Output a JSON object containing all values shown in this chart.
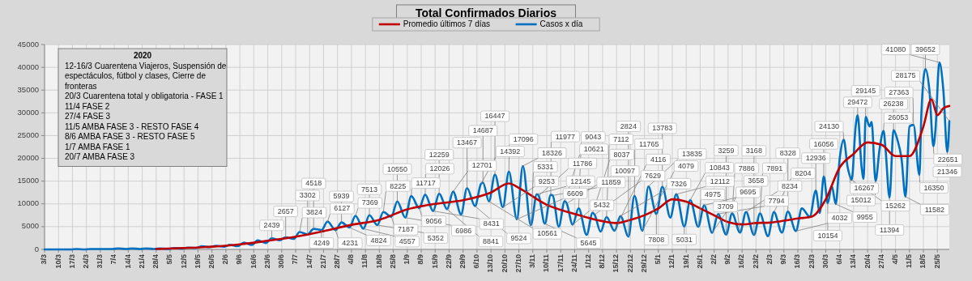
{
  "chart_data": {
    "type": "line",
    "title": "Total Confirmados Diarios",
    "legend": "top",
    "grid": true,
    "xlim": [
      "2020-03-03",
      "2021-05-31"
    ],
    "ylim": [
      0,
      45000
    ],
    "yticks": [
      0,
      5000,
      10000,
      15000,
      20000,
      25000,
      30000,
      35000,
      40000,
      45000
    ],
    "xticks": [
      {
        "value": "2020-03-03",
        "label": "3/3"
      },
      {
        "value": "2020-03-10",
        "label": "10/3"
      },
      {
        "value": "2020-03-17",
        "label": "17/3"
      },
      {
        "value": "2020-03-24",
        "label": "24/3"
      },
      {
        "value": "2020-03-31",
        "label": "31/3"
      },
      {
        "value": "2020-04-07",
        "label": "7/4"
      },
      {
        "value": "2020-04-14",
        "label": "14/4"
      },
      {
        "value": "2020-04-21",
        "label": "21/4"
      },
      {
        "value": "2020-04-28",
        "label": "28/4"
      },
      {
        "value": "2020-05-05",
        "label": "5/5"
      },
      {
        "value": "2020-05-12",
        "label": "12/5"
      },
      {
        "value": "2020-05-19",
        "label": "19/5"
      },
      {
        "value": "2020-05-26",
        "label": "26/5"
      },
      {
        "value": "2020-06-02",
        "label": "2/6"
      },
      {
        "value": "2020-06-09",
        "label": "9/6"
      },
      {
        "value": "2020-06-16",
        "label": "16/6"
      },
      {
        "value": "2020-06-23",
        "label": "23/6"
      },
      {
        "value": "2020-06-30",
        "label": "30/6"
      },
      {
        "value": "2020-07-07",
        "label": "7/7"
      },
      {
        "value": "2020-07-14",
        "label": "14/7"
      },
      {
        "value": "2020-07-21",
        "label": "21/7"
      },
      {
        "value": "2020-07-28",
        "label": "28/7"
      },
      {
        "value": "2020-08-04",
        "label": "4/8"
      },
      {
        "value": "2020-08-11",
        "label": "11/8"
      },
      {
        "value": "2020-08-18",
        "label": "18/8"
      },
      {
        "value": "2020-08-25",
        "label": "25/8"
      },
      {
        "value": "2020-09-01",
        "label": "1/9"
      },
      {
        "value": "2020-09-08",
        "label": "8/9"
      },
      {
        "value": "2020-09-15",
        "label": "15/9"
      },
      {
        "value": "2020-09-22",
        "label": "22/9"
      },
      {
        "value": "2020-09-29",
        "label": "29/9"
      },
      {
        "value": "2020-10-06",
        "label": "6/10"
      },
      {
        "value": "2020-10-13",
        "label": "13/10"
      },
      {
        "value": "2020-10-20",
        "label": "20/10"
      },
      {
        "value": "2020-10-27",
        "label": "27/10"
      },
      {
        "value": "2020-11-03",
        "label": "3/11"
      },
      {
        "value": "2020-11-10",
        "label": "10/11"
      },
      {
        "value": "2020-11-17",
        "label": "17/11"
      },
      {
        "value": "2020-11-24",
        "label": "24/11"
      },
      {
        "value": "2020-12-01",
        "label": "1/12"
      },
      {
        "value": "2020-12-08",
        "label": "8/12"
      },
      {
        "value": "2020-12-15",
        "label": "15/12"
      },
      {
        "value": "2020-12-22",
        "label": "22/12"
      },
      {
        "value": "2020-12-29",
        "label": "29/12"
      },
      {
        "value": "2021-01-05",
        "label": "5/1"
      },
      {
        "value": "2021-01-12",
        "label": "12/1"
      },
      {
        "value": "2021-01-19",
        "label": "19/1"
      },
      {
        "value": "2021-01-26",
        "label": "26/1"
      },
      {
        "value": "2021-02-02",
        "label": "2/2"
      },
      {
        "value": "2021-02-09",
        "label": "9/2"
      },
      {
        "value": "2021-02-16",
        "label": "16/2"
      },
      {
        "value": "2021-02-23",
        "label": "23/2"
      },
      {
        "value": "2021-03-02",
        "label": "2/3"
      },
      {
        "value": "2021-03-09",
        "label": "9/3"
      },
      {
        "value": "2021-03-16",
        "label": "16/3"
      },
      {
        "value": "2021-03-23",
        "label": "23/3"
      },
      {
        "value": "2021-03-30",
        "label": "30/3"
      },
      {
        "value": "2021-04-06",
        "label": "6/4"
      },
      {
        "value": "2021-04-13",
        "label": "13/4"
      },
      {
        "value": "2021-04-20",
        "label": "20/4"
      },
      {
        "value": "2021-04-27",
        "label": "27/4"
      },
      {
        "value": "2021-05-04",
        "label": "4/5"
      },
      {
        "value": "2021-05-11",
        "label": "11/5"
      },
      {
        "value": "2021-05-18",
        "label": "18/5"
      },
      {
        "value": "2021-05-25",
        "label": "25/5"
      }
    ],
    "series": [
      {
        "name": "Promedio últimos 7 días",
        "color": "#c00000",
        "x": [
          "2020-04-28",
          "2020-05-12",
          "2020-05-26",
          "2020-06-09",
          "2020-06-23",
          "2020-07-07",
          "2020-07-21",
          "2020-08-04",
          "2020-08-18",
          "2020-09-01",
          "2020-09-15",
          "2020-09-29",
          "2020-10-13",
          "2020-10-22",
          "2020-10-27",
          "2020-11-10",
          "2020-11-24",
          "2020-12-08",
          "2020-12-15",
          "2020-12-22",
          "2020-12-29",
          "2021-01-05",
          "2021-01-12",
          "2021-01-19",
          "2021-01-26",
          "2021-02-02",
          "2021-02-09",
          "2021-02-16",
          "2021-02-23",
          "2021-03-02",
          "2021-03-09",
          "2021-03-16",
          "2021-03-23",
          "2021-03-30",
          "2021-04-06",
          "2021-04-13",
          "2021-04-20",
          "2021-04-27",
          "2021-05-04",
          "2021-05-11",
          "2021-05-18",
          "2021-05-22",
          "2021-05-25",
          "2021-05-28",
          "2021-05-31"
        ],
        "values": [
          100,
          300,
          600,
          1100,
          1900,
          2800,
          4000,
          5400,
          6500,
          8800,
          10000,
          10800,
          12500,
          14500,
          13500,
          9800,
          7800,
          6200,
          5800,
          6500,
          7500,
          9000,
          11000,
          10500,
          9000,
          7500,
          6000,
          5500,
          5800,
          5900,
          6300,
          6800,
          7200,
          11000,
          18000,
          21000,
          23500,
          23000,
          20500,
          20500,
          27000,
          33000,
          29500,
          31000,
          31500
        ]
      },
      {
        "name": "Casos x día",
        "color": "#0070c0",
        "x": [
          "2020-03-03",
          "2020-03-05",
          "2020-03-09",
          "2020-03-12",
          "2020-03-16",
          "2020-03-19",
          "2020-03-23",
          "2020-03-26",
          "2020-03-30",
          "2020-04-02",
          "2020-04-06",
          "2020-04-09",
          "2020-04-13",
          "2020-04-16",
          "2020-04-20",
          "2020-04-23",
          "2020-04-27",
          "2020-04-30",
          "2020-05-04",
          "2020-05-07",
          "2020-05-11",
          "2020-05-14",
          "2020-05-18",
          "2020-05-21",
          "2020-05-25",
          "2020-05-28",
          "2020-06-01",
          "2020-06-04",
          "2020-06-08",
          "2020-06-11",
          "2020-06-15",
          "2020-06-18",
          "2020-06-22",
          "2020-06-25",
          "2020-06-29",
          "2020-07-02",
          "2020-07-06",
          "2020-07-09",
          "2020-07-13",
          "2020-07-16",
          "2020-07-20",
          "2020-07-23",
          "2020-07-27",
          "2020-07-30",
          "2020-08-03",
          "2020-08-06",
          "2020-08-10",
          "2020-08-13",
          "2020-08-17",
          "2020-08-20",
          "2020-08-24",
          "2020-08-27",
          "2020-08-31",
          "2020-09-03",
          "2020-09-07",
          "2020-09-10",
          "2020-09-14",
          "2020-09-17",
          "2020-09-21",
          "2020-09-24",
          "2020-09-28",
          "2020-10-01",
          "2020-10-05",
          "2020-10-08",
          "2020-10-09",
          "2020-10-12",
          "2020-10-15",
          "2020-10-19",
          "2020-10-22",
          "2020-10-26",
          "2020-10-29",
          "2020-11-02",
          "2020-11-05",
          "2020-11-06",
          "2020-11-09",
          "2020-11-12",
          "2020-11-13",
          "2020-11-16",
          "2020-11-19",
          "2020-11-20",
          "2020-11-23",
          "2020-11-26",
          "2020-11-30",
          "2020-12-03",
          "2020-12-04",
          "2020-12-07",
          "2020-12-10",
          "2020-12-14",
          "2020-12-17",
          "2020-12-21",
          "2020-12-24",
          "2020-12-28",
          "2020-12-31",
          "2021-01-04",
          "2021-01-07",
          "2021-01-11",
          "2021-01-14",
          "2021-01-18",
          "2021-01-21",
          "2021-01-25",
          "2021-01-28",
          "2021-02-01",
          "2021-02-04",
          "2021-02-08",
          "2021-02-11",
          "2021-02-15",
          "2021-02-18",
          "2021-02-22",
          "2021-02-25",
          "2021-03-01",
          "2021-03-04",
          "2021-03-08",
          "2021-03-11",
          "2021-03-15",
          "2021-03-18",
          "2021-03-22",
          "2021-03-25",
          "2021-03-27",
          "2021-03-29",
          "2021-03-31",
          "2021-04-02",
          "2021-04-04",
          "2021-04-06",
          "2021-04-08",
          "2021-04-10",
          "2021-04-11",
          "2021-04-12",
          "2021-04-14",
          "2021-04-15",
          "2021-04-17",
          "2021-04-18",
          "2021-04-19",
          "2021-04-21",
          "2021-04-22",
          "2021-04-24",
          "2021-04-26",
          "2021-04-28",
          "2021-04-29",
          "2021-05-01",
          "2021-05-03",
          "2021-05-05",
          "2021-05-07",
          "2021-05-09",
          "2021-05-11",
          "2021-05-13",
          "2021-05-16",
          "2021-05-17",
          "2021-05-19",
          "2021-05-21",
          "2021-05-23",
          "2021-05-24",
          "2021-05-26",
          "2021-05-28",
          "2021-05-30",
          "2021-05-31"
        ],
        "values": [
          0,
          0,
          0,
          0,
          0,
          100,
          0,
          100,
          100,
          100,
          100,
          200,
          100,
          200,
          100,
          200,
          100,
          200,
          100,
          300,
          200,
          400,
          300,
          700,
          500,
          800,
          600,
          1000,
          700,
          1500,
          1000,
          2000,
          1400,
          2439,
          2000,
          2657,
          2300,
          3824,
          3302,
          4518,
          4249,
          6127,
          4231,
          5939,
          4824,
          7369,
          4557,
          7513,
          5352,
          8225,
          7187,
          10550,
          6986,
          11717,
          9056,
          12026,
          8431,
          12259,
          8841,
          12701,
          7700,
          13467,
          9524,
          14392,
          14687,
          10561,
          16447,
          9253,
          17096,
          6609,
          18326,
          5331,
          12145,
          11786,
          5645,
          11977,
          11859,
          5000,
          10621,
          10097,
          5432,
          9043,
          3200,
          8037,
          7629,
          3900,
          7112,
          4116,
          7326,
          2824,
          11765,
          4079,
          13835,
          7808,
          13783,
          7000,
          12112,
          5031,
          10843,
          4975,
          9695,
          3658,
          7794,
          3259,
          7886,
          3709,
          8234,
          3168,
          7891,
          2900,
          8204,
          3700,
          8328,
          4032,
          9000,
          7200,
          12936,
          8000,
          16056,
          10154,
          14000,
          9955,
          20000,
          24130,
          18000,
          16267,
          15262,
          27000,
          29472,
          18000,
          15500,
          29145,
          27000,
          28000,
          15012,
          22000,
          26053,
          22000,
          11394,
          26238,
          24000,
          20000,
          11582,
          27000,
          27363,
          16350,
          30000,
          39652,
          35000,
          22651,
          26000,
          41080,
          35000,
          21346,
          28175
        ]
      }
    ],
    "annotations": [
      "2020",
      "12-16/3 Cuarentena Viajeros, Suspensión de espectáculos, fútbol y clases, Cierre de fronteras",
      "20/3 Cuarentena total y obligatoria - FASE 1",
      "11/4 FASE 2",
      "27/4 FASE 3",
      "11/5 AMBA FASE 3 - RESTO FASE 4",
      "8/6 AMBA FASE 3 - RESTO FASE 5",
      "1/7 AMBA FASE 1",
      "20/7 AMBA FASE 3",
      {
        "text": "2439",
        "x": "2020-06-25",
        "y": 2439
      },
      {
        "text": "2657",
        "x": "2020-07-02",
        "y": 2657
      },
      {
        "text": "3824",
        "x": "2020-07-09",
        "y": 3824
      },
      {
        "text": "3302",
        "x": "2020-07-13",
        "y": 3302
      },
      {
        "text": "4518",
        "x": "2020-07-16",
        "y": 4518
      },
      {
        "text": "4249",
        "x": "2020-07-20",
        "y": 4249
      },
      {
        "text": "6127",
        "x": "2020-07-23",
        "y": 6127
      },
      {
        "text": "4231",
        "x": "2020-07-27",
        "y": 4231
      },
      {
        "text": "5939",
        "x": "2020-07-30",
        "y": 5939
      },
      {
        "text": "4824",
        "x": "2020-08-03",
        "y": 4824
      },
      {
        "text": "7369",
        "x": "2020-08-06",
        "y": 7369
      },
      {
        "text": "4557",
        "x": "2020-08-10",
        "y": 4557
      },
      {
        "text": "7513",
        "x": "2020-08-13",
        "y": 7513
      },
      {
        "text": "5352",
        "x": "2020-08-17",
        "y": 5352
      },
      {
        "text": "8225",
        "x": "2020-08-20",
        "y": 8225
      },
      {
        "text": "7187",
        "x": "2020-08-24",
        "y": 7187
      },
      {
        "text": "10550",
        "x": "2020-08-27",
        "y": 10550
      },
      {
        "text": "6986",
        "x": "2020-08-31",
        "y": 6986
      },
      {
        "text": "11717",
        "x": "2020-09-03",
        "y": 11717
      },
      {
        "text": "9056",
        "x": "2020-09-07",
        "y": 9056
      },
      {
        "text": "12026",
        "x": "2020-09-10",
        "y": 12026
      },
      {
        "text": "8431",
        "x": "2020-09-14",
        "y": 8431
      },
      {
        "text": "12259",
        "x": "2020-09-17",
        "y": 12259
      },
      {
        "text": "8841",
        "x": "2020-09-21",
        "y": 8841
      },
      {
        "text": "12701",
        "x": "2020-09-24",
        "y": 12701
      },
      {
        "text": "13467",
        "x": "2020-10-01",
        "y": 13467
      },
      {
        "text": "9524",
        "x": "2020-10-05",
        "y": 9524
      },
      {
        "text": "14392",
        "x": "2020-10-08",
        "y": 14392
      },
      {
        "text": "14687",
        "x": "2020-10-09",
        "y": 14687
      },
      {
        "text": "10561",
        "x": "2020-10-12",
        "y": 10561
      },
      {
        "text": "16447",
        "x": "2020-10-15",
        "y": 16447
      },
      {
        "text": "9253",
        "x": "2020-10-19",
        "y": 9253
      },
      {
        "text": "17096",
        "x": "2020-10-22",
        "y": 17096
      },
      {
        "text": "6609",
        "x": "2020-10-26",
        "y": 6609
      },
      {
        "text": "18326",
        "x": "2020-10-29",
        "y": 18326
      },
      {
        "text": "5331",
        "x": "2020-11-02",
        "y": 5331
      },
      {
        "text": "12145",
        "x": "2020-11-05",
        "y": 12145
      },
      {
        "text": "11786",
        "x": "2020-11-06",
        "y": 11786
      },
      {
        "text": "5645",
        "x": "2020-11-09",
        "y": 5645
      },
      {
        "text": "11977",
        "x": "2020-11-12",
        "y": 11977
      },
      {
        "text": "11859",
        "x": "2020-11-13",
        "y": 11859
      },
      {
        "text": "10621",
        "x": "2020-11-19",
        "y": 10621
      },
      {
        "text": "10097",
        "x": "2020-11-20",
        "y": 10097
      },
      {
        "text": "5432",
        "x": "2020-11-23",
        "y": 5432
      },
      {
        "text": "9043",
        "x": "2020-11-26",
        "y": 9043
      },
      {
        "text": "8037",
        "x": "2020-12-03",
        "y": 8037
      },
      {
        "text": "7629",
        "x": "2020-12-04",
        "y": 7629
      },
      {
        "text": "7112",
        "x": "2020-12-10",
        "y": 7112
      },
      {
        "text": "4116",
        "x": "2020-12-14",
        "y": 4116
      },
      {
        "text": "7326",
        "x": "2020-12-17",
        "y": 7326
      },
      {
        "text": "2824",
        "x": "2020-12-21",
        "y": 2824
      },
      {
        "text": "11765",
        "x": "2020-12-24",
        "y": 11765
      },
      {
        "text": "4079",
        "x": "2020-12-28",
        "y": 4079
      },
      {
        "text": "13835",
        "x": "2020-12-31",
        "y": 13835
      },
      {
        "text": "7808",
        "x": "2021-01-04",
        "y": 7808
      },
      {
        "text": "13783",
        "x": "2021-01-07",
        "y": 13783
      },
      {
        "text": "12112",
        "x": "2021-01-14",
        "y": 12112
      },
      {
        "text": "5031",
        "x": "2021-01-18",
        "y": 5031
      },
      {
        "text": "10843",
        "x": "2021-01-21",
        "y": 10843
      },
      {
        "text": "4975",
        "x": "2021-01-25",
        "y": 4975
      },
      {
        "text": "9695",
        "x": "2021-01-28",
        "y": 9695
      },
      {
        "text": "3658",
        "x": "2021-02-01",
        "y": 3658
      },
      {
        "text": "7794",
        "x": "2021-02-04",
        "y": 7794
      },
      {
        "text": "3259",
        "x": "2021-02-08",
        "y": 3259
      },
      {
        "text": "7886",
        "x": "2021-02-11",
        "y": 7886
      },
      {
        "text": "3709",
        "x": "2021-02-15",
        "y": 3709
      },
      {
        "text": "8234",
        "x": "2021-02-18",
        "y": 8234
      },
      {
        "text": "3168",
        "x": "2021-02-22",
        "y": 3168
      },
      {
        "text": "7891",
        "x": "2021-02-25",
        "y": 7891
      },
      {
        "text": "8204",
        "x": "2021-03-04",
        "y": 8204
      },
      {
        "text": "8328",
        "x": "2021-03-11",
        "y": 8328
      },
      {
        "text": "4032",
        "x": "2021-03-15",
        "y": 4032
      },
      {
        "text": "12936",
        "x": "2021-03-25",
        "y": 12936
      },
      {
        "text": "16056",
        "x": "2021-03-29",
        "y": 16056
      },
      {
        "text": "10154",
        "x": "2021-03-31",
        "y": 10154
      },
      {
        "text": "9955",
        "x": "2021-04-04",
        "y": 9955
      },
      {
        "text": "24130",
        "x": "2021-04-08",
        "y": 24130
      },
      {
        "text": "16267",
        "x": "2021-04-11",
        "y": 16267
      },
      {
        "text": "15262",
        "x": "2021-04-12",
        "y": 15262
      },
      {
        "text": "29472",
        "x": "2021-04-15",
        "y": 29472
      },
      {
        "text": "29145",
        "x": "2021-04-19",
        "y": 29145
      },
      {
        "text": "15012",
        "x": "2021-04-24",
        "y": 15012
      },
      {
        "text": "26053",
        "x": "2021-04-28",
        "y": 26053
      },
      {
        "text": "11394",
        "x": "2021-05-01",
        "y": 11394
      },
      {
        "text": "26238",
        "x": "2021-05-03",
        "y": 26238
      },
      {
        "text": "11582",
        "x": "2021-05-09",
        "y": 11582
      },
      {
        "text": "27363",
        "x": "2021-05-13",
        "y": 27363
      },
      {
        "text": "16350",
        "x": "2021-05-16",
        "y": 16350
      },
      {
        "text": "39652",
        "x": "2021-05-19",
        "y": 39652
      },
      {
        "text": "22651",
        "x": "2021-05-23",
        "y": 22651
      },
      {
        "text": "41080",
        "x": "2021-05-26",
        "y": 41080
      },
      {
        "text": "21346",
        "x": "2021-05-30",
        "y": 21346
      },
      {
        "text": "28175",
        "x": "2021-05-31",
        "y": 28175
      }
    ]
  }
}
